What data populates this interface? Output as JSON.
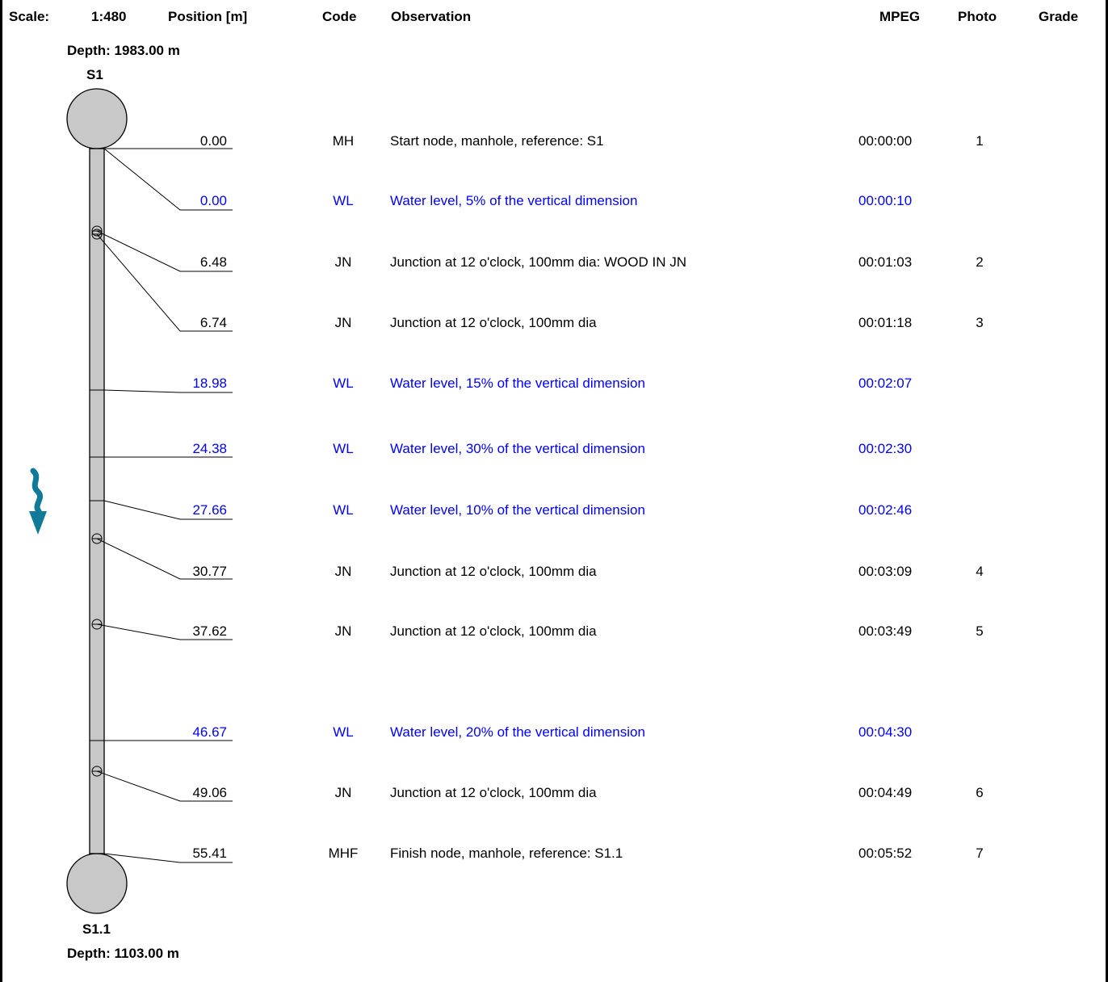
{
  "header": {
    "scale_label": "Scale:",
    "scale_value": "1:480",
    "position_label": "Position [m]",
    "code_label": "Code",
    "observation_label": "Observation",
    "mpeg_label": "MPEG",
    "photo_label": "Photo",
    "grade_label": "Grade"
  },
  "start_node": {
    "depth": "Depth: 1983.00 m",
    "name": "S1"
  },
  "finish_node": {
    "depth": "Depth: 1103.00 m",
    "name": "S1.1"
  },
  "colors": {
    "normal": "#000000",
    "water_level": "#0000ff",
    "pipe": "#c8c8c8",
    "flow_arrow": "#117a99"
  },
  "icons": {
    "flow": "flow-direction-arrow-icon",
    "junction": "junction-symbol-icon",
    "manhole": "manhole-circle-icon"
  },
  "observations": [
    {
      "position": "0.00",
      "code": "MH",
      "text": "Start node, manhole, reference: S1",
      "mpeg": "00:00:00",
      "photo": "1",
      "water": false
    },
    {
      "position": "0.00",
      "code": "WL",
      "text": "Water level, 5% of the vertical dimension",
      "mpeg": "00:00:10",
      "photo": "",
      "water": true
    },
    {
      "position": "6.48",
      "code": "JN",
      "text": "Junction at 12 o'clock, 100mm dia: WOOD IN JN",
      "mpeg": "00:01:03",
      "photo": "2",
      "water": false
    },
    {
      "position": "6.74",
      "code": "JN",
      "text": "Junction at 12 o'clock, 100mm dia",
      "mpeg": "00:01:18",
      "photo": "3",
      "water": false
    },
    {
      "position": "18.98",
      "code": "WL",
      "text": "Water level, 15% of the vertical dimension",
      "mpeg": "00:02:07",
      "photo": "",
      "water": true
    },
    {
      "position": "24.38",
      "code": "WL",
      "text": "Water level, 30% of the vertical dimension",
      "mpeg": "00:02:30",
      "photo": "",
      "water": true
    },
    {
      "position": "27.66",
      "code": "WL",
      "text": "Water level, 10% of the vertical dimension",
      "mpeg": "00:02:46",
      "photo": "",
      "water": true
    },
    {
      "position": "30.77",
      "code": "JN",
      "text": "Junction at 12 o'clock, 100mm dia",
      "mpeg": "00:03:09",
      "photo": "4",
      "water": false
    },
    {
      "position": "37.62",
      "code": "JN",
      "text": "Junction at 12 o'clock, 100mm dia",
      "mpeg": "00:03:49",
      "photo": "5",
      "water": false
    },
    {
      "position": "46.67",
      "code": "WL",
      "text": "Water level, 20% of the vertical dimension",
      "mpeg": "00:04:30",
      "photo": "",
      "water": true
    },
    {
      "position": "49.06",
      "code": "JN",
      "text": "Junction at 12 o'clock, 100mm dia",
      "mpeg": "00:04:49",
      "photo": "6",
      "water": false
    },
    {
      "position": "55.41",
      "code": "MHF",
      "text": "Finish node, manhole, reference: S1.1",
      "mpeg": "00:05:52",
      "photo": "7",
      "water": false
    }
  ]
}
